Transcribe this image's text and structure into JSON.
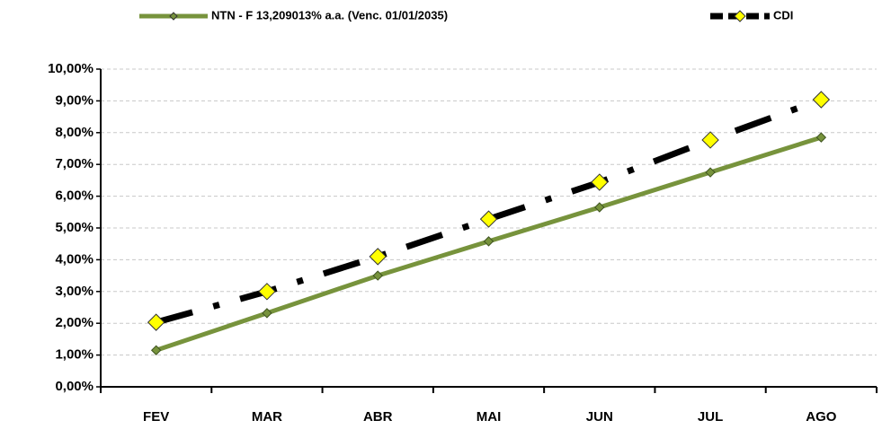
{
  "chart_data": {
    "type": "line",
    "categories": [
      "FEV",
      "MAR",
      "ABR",
      "MAI",
      "JUN",
      "JUL",
      "AGO"
    ],
    "series": [
      {
        "name": "NTN - F 13,209013% a.a. (Venc. 01/01/2035)",
        "color": "#77933c",
        "marker_color": "#77933c",
        "dash": "solid",
        "values": [
          1.15,
          2.32,
          3.5,
          4.58,
          5.65,
          6.75,
          7.85
        ]
      },
      {
        "name": "CDI",
        "color": "#000000",
        "marker_color": "#ffff00",
        "dash": "dashdot",
        "values": [
          2.03,
          3.0,
          4.1,
          5.28,
          6.44,
          7.77,
          9.04
        ]
      }
    ],
    "ylim": [
      0,
      10
    ],
    "yticks": [
      {
        "value": 0,
        "label": "0,00%"
      },
      {
        "value": 1,
        "label": "1,00%"
      },
      {
        "value": 2,
        "label": "2,00%"
      },
      {
        "value": 3,
        "label": "3,00%"
      },
      {
        "value": 4,
        "label": "4,00%"
      },
      {
        "value": 5,
        "label": "5,00%"
      },
      {
        "value": 6,
        "label": "6,00%"
      },
      {
        "value": 7,
        "label": "7,00%"
      },
      {
        "value": 8,
        "label": "8,00%"
      },
      {
        "value": 9,
        "label": "9,00%"
      },
      {
        "value": 10,
        "label": "10,00%"
      }
    ],
    "grid": true,
    "legend": "top"
  }
}
